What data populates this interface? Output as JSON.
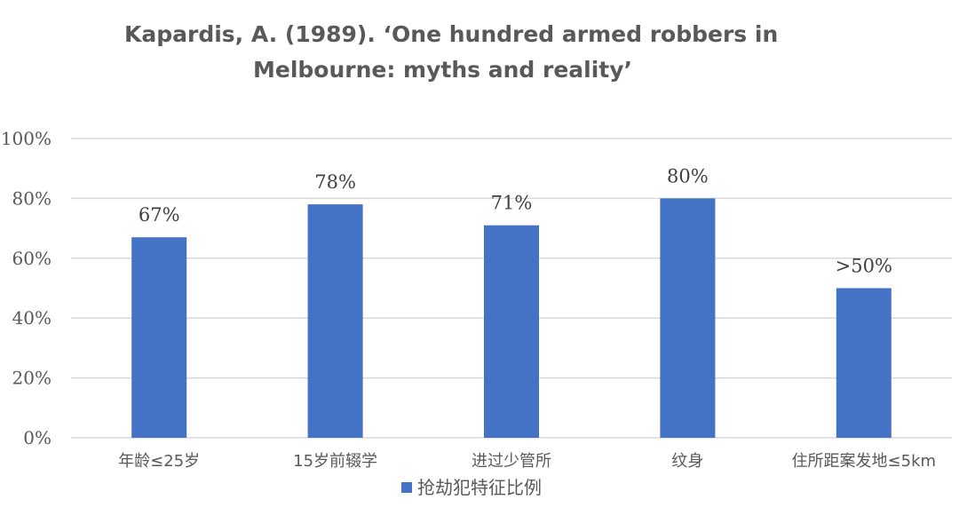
{
  "chart_data": {
    "type": "bar",
    "title_lines": [
      "Kapardis, A. (1989).   ‘One hundred armed robbers in",
      "Melbourne: myths and reality’"
    ],
    "categories": [
      "年龄≤25岁",
      "15岁前辍学",
      "进过少管所",
      "纹身",
      "住所距案发地≤5km"
    ],
    "series": [
      {
        "name": "抢劫犯特征比例",
        "values": [
          67,
          78,
          71,
          80,
          50
        ],
        "data_labels": [
          "67%",
          "78%",
          "71%",
          "80%",
          ">50%"
        ],
        "color": "#4472C4"
      }
    ],
    "ylim": [
      0,
      100
    ],
    "yticks": [
      0,
      20,
      40,
      60,
      80,
      100
    ],
    "ytick_labels": [
      "0%",
      "20%",
      "40%",
      "60%",
      "80%",
      "100%"
    ],
    "grid": true,
    "legend": "bottom",
    "gridline_color": "#d9d9d9"
  }
}
